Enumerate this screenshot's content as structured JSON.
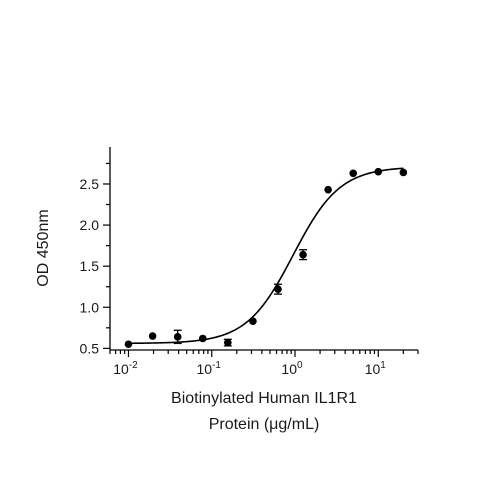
{
  "chart_data": {
    "type": "scatter",
    "title": "",
    "xlabel_lines": [
      "Biotinylated Human IL1R1",
      "Protein (μg/mL)"
    ],
    "ylabel": "OD 450nm",
    "x_scale": "log",
    "xlim": [
      0.006,
      30
    ],
    "ylim": [
      0.48,
      2.95
    ],
    "x_major_ticks": [
      {
        "value": 0.01,
        "base": "10",
        "exp": "-2"
      },
      {
        "value": 0.1,
        "base": "10",
        "exp": "-1"
      },
      {
        "value": 1,
        "base": "10",
        "exp": "0"
      },
      {
        "value": 10,
        "base": "10",
        "exp": "1"
      }
    ],
    "y_ticks": [
      {
        "value": 0.5,
        "label": "0.5"
      },
      {
        "value": 1.0,
        "label": "1.0"
      },
      {
        "value": 1.5,
        "label": "1.5"
      },
      {
        "value": 2.0,
        "label": "2.0"
      },
      {
        "value": 2.5,
        "label": "2.5"
      }
    ],
    "y_minor_ticks": [
      0.75,
      1.25,
      1.75,
      2.25,
      2.75
    ],
    "points": [
      {
        "x": 0.01,
        "y": 0.55,
        "err": 0
      },
      {
        "x": 0.0195,
        "y": 0.65,
        "err": 0
      },
      {
        "x": 0.039,
        "y": 0.64,
        "err": 0.08
      },
      {
        "x": 0.078,
        "y": 0.62,
        "err": 0
      },
      {
        "x": 0.156,
        "y": 0.57,
        "err": 0.04
      },
      {
        "x": 0.3125,
        "y": 0.83,
        "err": 0
      },
      {
        "x": 0.625,
        "y": 1.22,
        "err": 0.06
      },
      {
        "x": 1.25,
        "y": 1.64,
        "err": 0.06
      },
      {
        "x": 2.5,
        "y": 2.43,
        "err": 0
      },
      {
        "x": 5,
        "y": 2.63,
        "err": 0
      },
      {
        "x": 10,
        "y": 2.65,
        "err": 0
      },
      {
        "x": 20,
        "y": 2.64,
        "err": 0
      }
    ],
    "fit": {
      "model": "4PL",
      "bottom": 0.56,
      "top": 2.71,
      "ec50": 0.95,
      "hill": 1.55
    },
    "grid": false,
    "legend": "none"
  }
}
